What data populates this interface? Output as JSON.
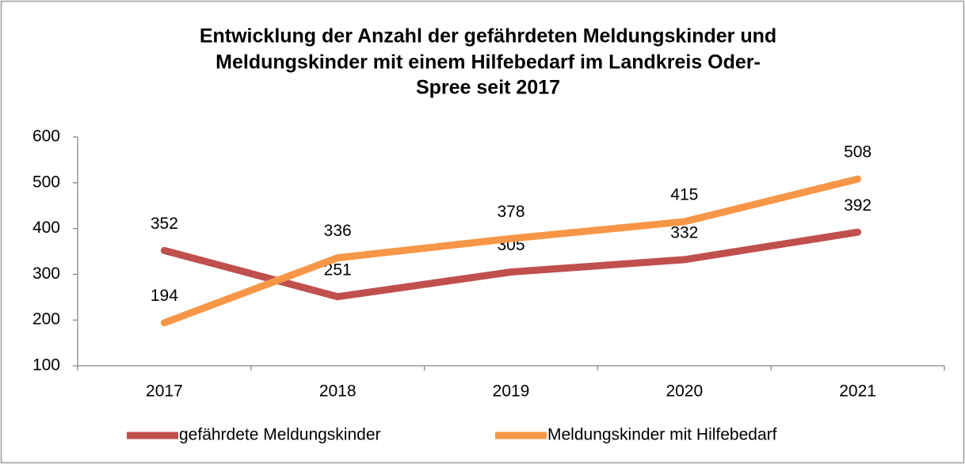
{
  "chart_data": {
    "type": "line",
    "title": [
      "Entwicklung der Anzahl der gefährdeten Meldungskinder und",
      "Meldungskinder mit einem Hilfebedarf im Landkreis Oder-",
      "Spree seit 2017"
    ],
    "categories": [
      "2017",
      "2018",
      "2019",
      "2020",
      "2021"
    ],
    "series": [
      {
        "name": "gefährdete Meldungskinder",
        "color": "#c0504d",
        "values": [
          352,
          251,
          305,
          332,
          392
        ]
      },
      {
        "name": "Meldungskinder mit Hilfebedarf",
        "color": "#f79646",
        "values": [
          194,
          336,
          378,
          415,
          508
        ]
      }
    ],
    "ylim": [
      100,
      600
    ],
    "yticks": [
      100,
      200,
      300,
      400,
      500,
      600
    ],
    "grid": false,
    "legend": "bottom"
  }
}
